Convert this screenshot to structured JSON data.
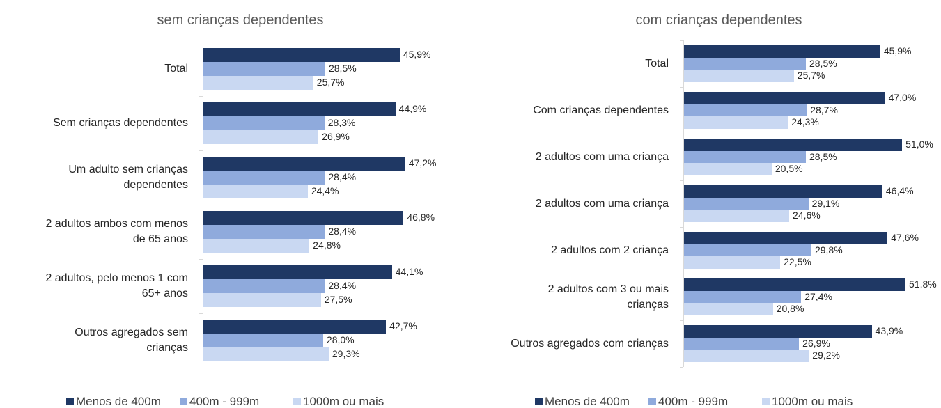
{
  "chart_data": [
    {
      "type": "bar",
      "orientation": "horizontal",
      "title": "sem crianças dependentes",
      "categories": [
        "Total",
        "Sem crianças dependentes",
        "Um adulto sem crianças dependentes",
        "2 adultos ambos com menos de 65 anos",
        "2 adultos, pelo menos 1 com 65+ anos",
        "Outros agregados sem crianças"
      ],
      "series": [
        {
          "name": "Menos de 400m",
          "color": "#1f3864",
          "values": [
            45.9,
            44.9,
            47.2,
            46.8,
            44.1,
            42.7
          ],
          "value_labels": [
            "45,9%",
            "44,9%",
            "47,2%",
            "46,8%",
            "44,1%",
            "42,7%"
          ]
        },
        {
          "name": "400m - 999m",
          "color": "#8faadc",
          "values": [
            28.5,
            28.3,
            28.4,
            28.4,
            28.4,
            28.0
          ],
          "value_labels": [
            "28,5%",
            "28,3%",
            "28,4%",
            "28,4%",
            "28,4%",
            "28,0%"
          ]
        },
        {
          "name": "1000m ou mais",
          "color": "#c9d8f2",
          "values": [
            25.7,
            26.9,
            24.4,
            24.8,
            27.5,
            29.3
          ],
          "value_labels": [
            "25,7%",
            "26,9%",
            "24,4%",
            "24,8%",
            "27,5%",
            "29,3%"
          ]
        }
      ],
      "legend": "bottom"
    },
    {
      "type": "bar",
      "orientation": "horizontal",
      "title": "com crianças dependentes",
      "categories": [
        "Total",
        "Com crianças dependentes",
        "2 adultos com uma criança",
        "2 adultos com uma criança",
        "2 adultos com 2 criança",
        "2 adultos com 3 ou mais crianças",
        "Outros agregados com crianças"
      ],
      "series": [
        {
          "name": "Menos de 400m",
          "color": "#1f3864",
          "values": [
            45.9,
            47.0,
            51.0,
            46.4,
            47.6,
            51.8,
            43.9
          ],
          "value_labels": [
            "45,9%",
            "47,0%",
            "51,0%",
            "46,4%",
            "47,6%",
            "51,8%",
            "43,9%"
          ]
        },
        {
          "name": "400m - 999m",
          "color": "#8faadc",
          "values": [
            28.5,
            28.7,
            28.5,
            29.1,
            29.8,
            27.4,
            26.9
          ],
          "value_labels": [
            "28,5%",
            "28,7%",
            "28,5%",
            "29,1%",
            "29,8%",
            "27,4%",
            "26,9%"
          ]
        },
        {
          "name": "1000m ou mais",
          "color": "#c9d8f2",
          "values": [
            25.7,
            24.3,
            20.5,
            24.6,
            22.5,
            20.8,
            29.2
          ],
          "value_labels": [
            "25,7%",
            "24,3%",
            "20,5%",
            "24,6%",
            "22,5%",
            "20,8%",
            "29,2%"
          ]
        }
      ],
      "legend": "bottom"
    }
  ]
}
